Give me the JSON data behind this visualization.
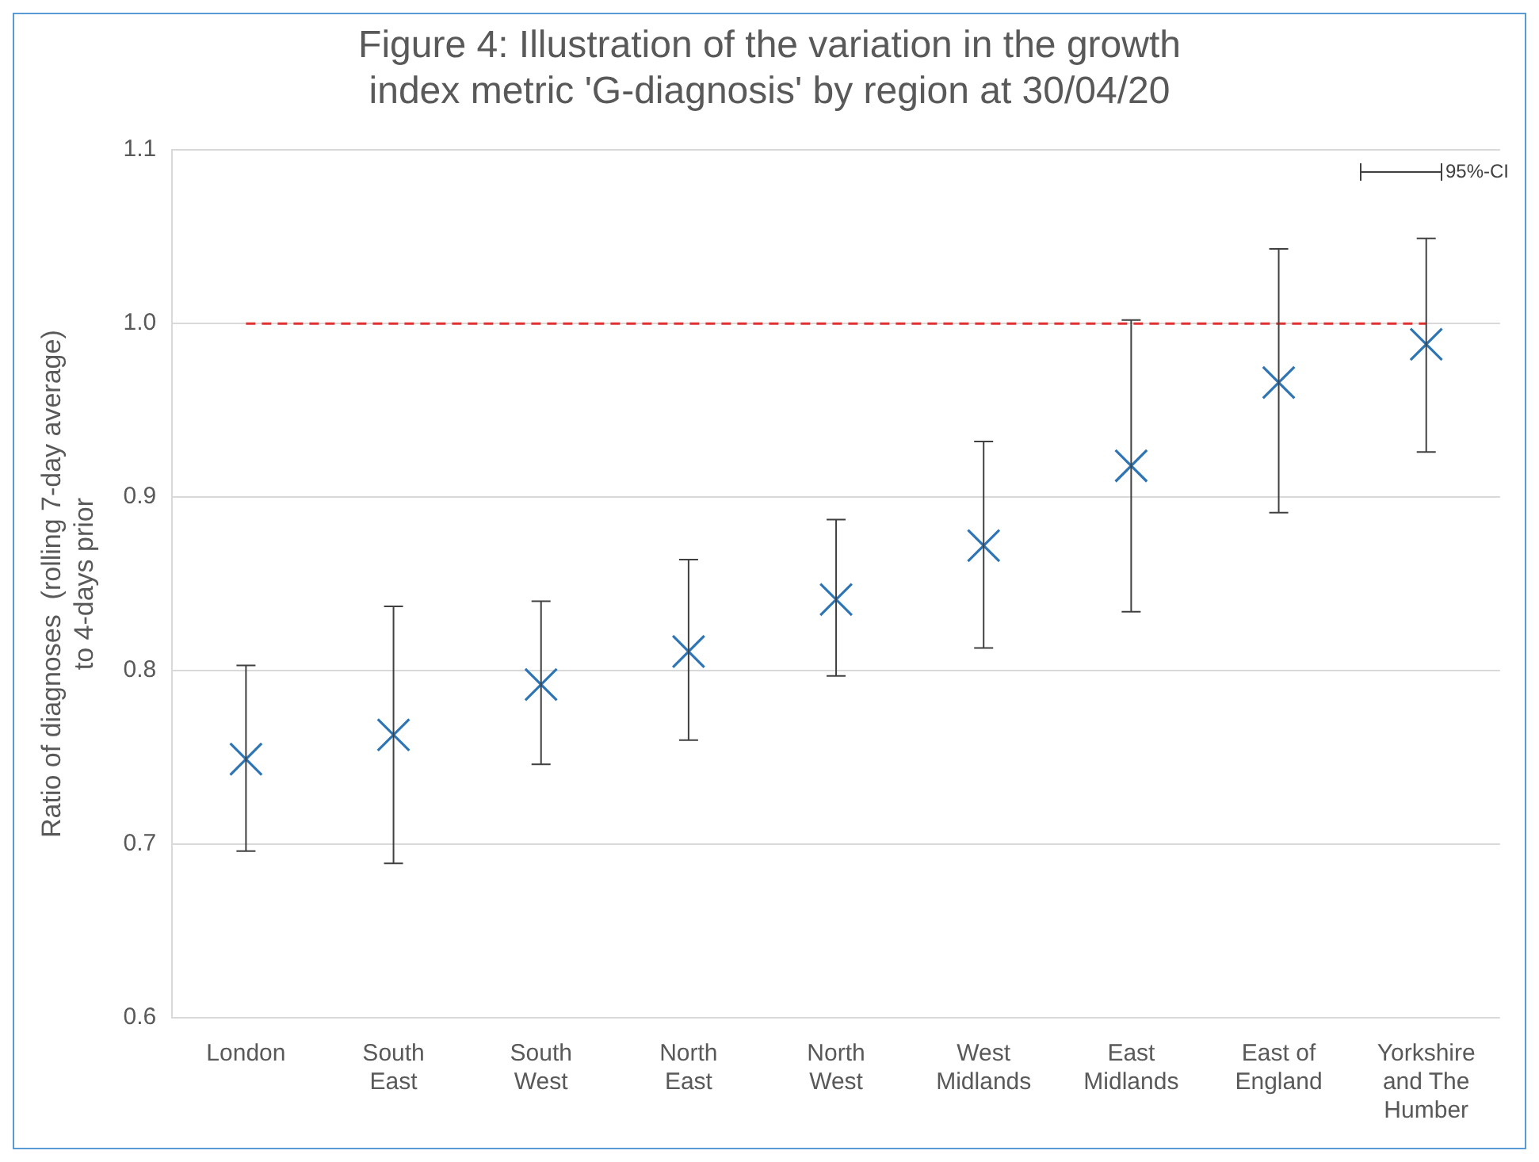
{
  "chart_data": {
    "type": "scatter",
    "title": "Figure 4: Illustration of the variation in the growth\nindex metric 'G-diagnosis' by region at 30/04/20",
    "ylabel": "Ratio of diagnoses  (rolling 7-day average)\nto 4-days prior",
    "categories": [
      "London",
      "South East",
      "South West",
      "North East",
      "North West",
      "West Midlands",
      "East Midlands",
      "East of England",
      "Yorkshire and The Humber"
    ],
    "series": [
      {
        "color": "#2e75b6",
        "values": [
          0.749,
          0.763,
          0.792,
          0.811,
          0.841,
          0.872,
          0.918,
          0.966,
          0.988
        ],
        "errors": [
          [
            0.696,
            0.803
          ],
          [
            0.689,
            0.837
          ],
          [
            0.746,
            0.84
          ],
          [
            0.76,
            0.864
          ],
          [
            0.797,
            0.887
          ],
          [
            0.813,
            0.932
          ],
          [
            0.834,
            1.002
          ],
          [
            0.891,
            1.043
          ],
          [
            0.926,
            1.049
          ]
        ]
      }
    ],
    "ylim": [
      0.6,
      1.1
    ],
    "yticks": [
      0.6,
      0.7,
      0.8,
      0.9,
      {
        "value": 1,
        "label": "1.0"
      },
      1.1
    ],
    "grid": "y",
    "marker": "cross",
    "ref_lines": [
      {
        "axis": "y",
        "value": 1.0,
        "color": "#e03030",
        "line_style": "dashed"
      }
    ],
    "annotations": [
      "95%-CI"
    ]
  }
}
